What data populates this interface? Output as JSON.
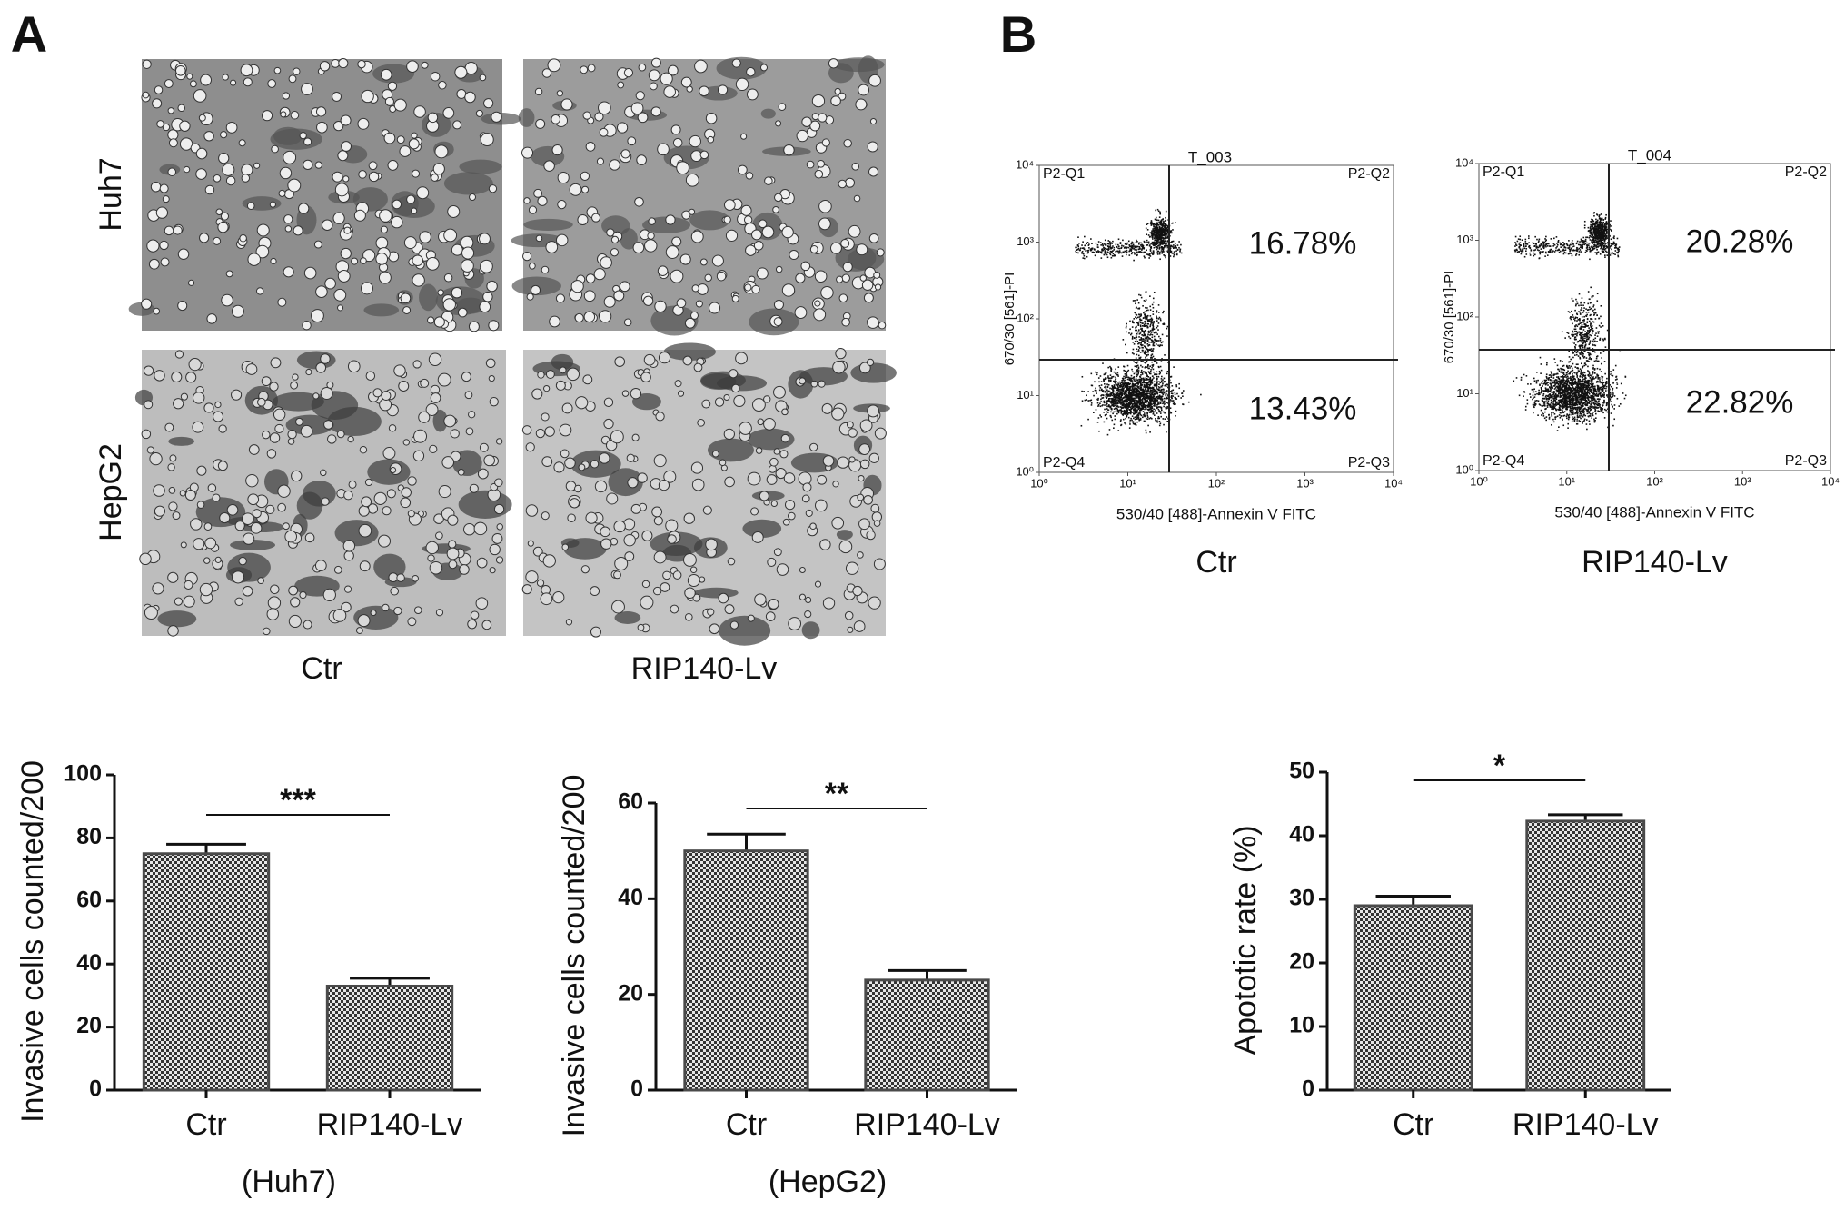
{
  "panels": {
    "a": "A",
    "b": "B"
  },
  "micrographs": {
    "rows": [
      "Huh7",
      "HepG2"
    ],
    "columns": [
      "Ctr",
      "RIP140-Lv"
    ]
  },
  "flow_plots": [
    {
      "title": "T_003",
      "quadrants": [
        "P2-Q1",
        "P2-Q2",
        "P2-Q3",
        "P2-Q4"
      ],
      "xlabel": "530/40 [488]-Annexin V FITC",
      "ylabel": "670/30 [561]-PI",
      "xlim": [
        1,
        10000
      ],
      "ylim": [
        1,
        10000
      ],
      "xticks": [
        {
          "value": 1,
          "label": "10⁰"
        },
        {
          "value": 10,
          "label": "10¹"
        },
        {
          "value": 100,
          "label": "10²"
        },
        {
          "value": 1000,
          "label": "10³"
        },
        {
          "value": 10000,
          "label": "10⁴"
        }
      ],
      "yticks": [
        {
          "value": 1,
          "label": "10⁰"
        },
        {
          "value": 10,
          "label": "10¹"
        },
        {
          "value": 100,
          "label": "10²"
        },
        {
          "value": 1000,
          "label": "10³"
        },
        {
          "value": 10000,
          "label": "10⁴"
        }
      ],
      "upper_right": "16.78%",
      "lower_right": "13.43%",
      "caption": "Ctr"
    },
    {
      "title": "T_004",
      "quadrants": [
        "P2-Q1",
        "P2-Q2",
        "P2-Q3",
        "P2-Q4"
      ],
      "xlabel": "530/40 [488]-Annexin V FITC",
      "ylabel": "670/30 [561]-PI",
      "xlim": [
        1,
        10000
      ],
      "ylim": [
        1,
        10000
      ],
      "xticks": [
        {
          "value": 1,
          "label": "10⁰"
        },
        {
          "value": 10,
          "label": "10¹"
        },
        {
          "value": 100,
          "label": "10²"
        },
        {
          "value": 1000,
          "label": "10³"
        },
        {
          "value": 10000,
          "label": "10⁴"
        }
      ],
      "yticks": [
        {
          "value": 1,
          "label": "10⁰"
        },
        {
          "value": 10,
          "label": "10¹"
        },
        {
          "value": 100,
          "label": "10²"
        },
        {
          "value": 1000,
          "label": "10³"
        },
        {
          "value": 10000,
          "label": "10⁴"
        }
      ],
      "upper_right": "20.28%",
      "lower_right": "22.82%",
      "caption": "RIP140-Lv"
    }
  ],
  "chart_data": [
    {
      "type": "bar",
      "ylabel": "Invasive cells counted/200",
      "xlabel": "(Huh7)",
      "categories": [
        "Ctr",
        "RIP140-Lv"
      ],
      "values": [
        75,
        33
      ],
      "errors": [
        3,
        2.5
      ],
      "ylim": [
        0,
        100
      ],
      "yticks": [
        0,
        20,
        40,
        60,
        80,
        100
      ],
      "significance": "***",
      "color": "#4a4a4a"
    },
    {
      "type": "bar",
      "ylabel": "Invasive cells counted/200",
      "xlabel": "(HepG2)",
      "categories": [
        "Ctr",
        "RIP140-Lv"
      ],
      "values": [
        50,
        23
      ],
      "errors": [
        3.5,
        2
      ],
      "ylim": [
        0,
        60
      ],
      "yticks": [
        0,
        20,
        40,
        60
      ],
      "significance": "**",
      "color": "#4a4a4a"
    },
    {
      "type": "bar",
      "ylabel": "Apototic rate (%)",
      "categories": [
        "Ctr",
        "RIP140-Lv"
      ],
      "values": [
        29,
        42.3
      ],
      "errors": [
        1.5,
        1
      ],
      "ylim": [
        0,
        50
      ],
      "yticks": [
        0,
        10,
        20,
        30,
        40,
        50
      ],
      "significance": "*",
      "color": "#4a4a4a"
    }
  ]
}
